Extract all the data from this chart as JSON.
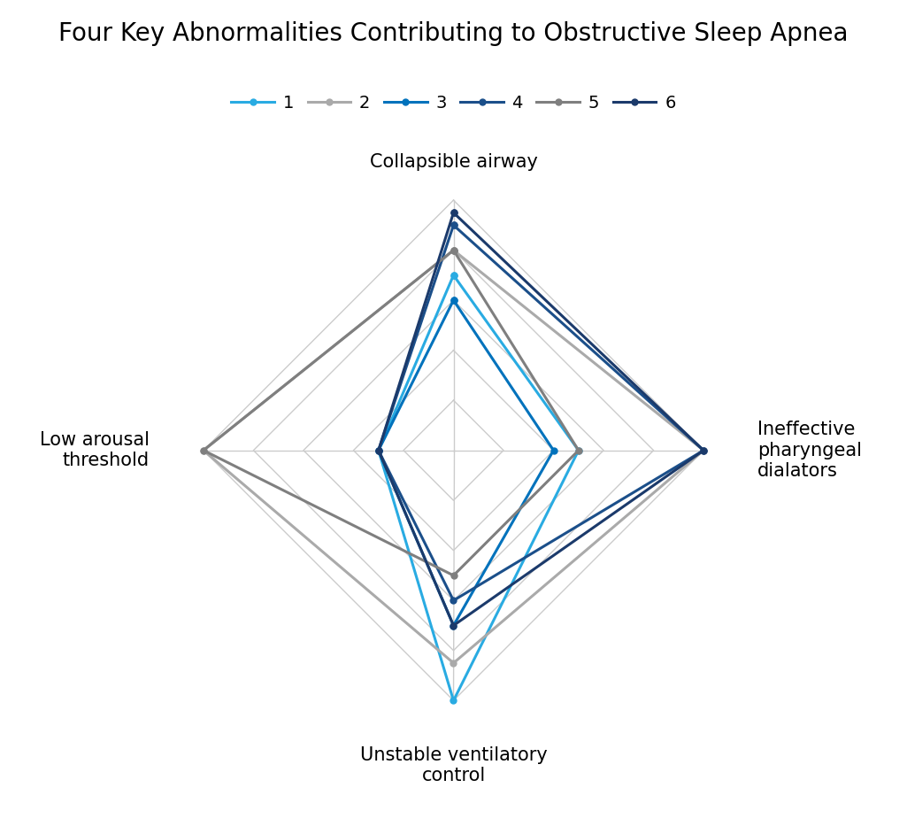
{
  "title": "Four Key Abnormalities Contributing to Obstructive Sleep Apnea",
  "categories": [
    "Collapsible airway",
    "Ineffective\npharyngeal\ndialators",
    "Unstable ventilatory\ncontrol",
    "Low arousal\nthreshold"
  ],
  "series": [
    {
      "label": "1",
      "color": "#29ABE2",
      "values": [
        7.0,
        5.0,
        10.0,
        3.0
      ]
    },
    {
      "label": "2",
      "color": "#AAAAAA",
      "values": [
        8.0,
        10.0,
        8.5,
        10.0
      ]
    },
    {
      "label": "3",
      "color": "#0072BC",
      "values": [
        6.0,
        4.0,
        7.0,
        3.0
      ]
    },
    {
      "label": "4",
      "color": "#1B4F8A",
      "values": [
        9.0,
        10.0,
        6.0,
        3.0
      ]
    },
    {
      "label": "5",
      "color": "#7F7F7F",
      "values": [
        8.0,
        5.0,
        5.0,
        10.0
      ]
    },
    {
      "label": "6",
      "color": "#1B3A6B",
      "values": [
        9.5,
        10.0,
        7.0,
        3.0
      ]
    }
  ],
  "max_value": 10,
  "grid_levels": [
    2,
    4,
    6,
    8,
    10
  ],
  "grid_color": "#CCCCCC",
  "background_color": "#FFFFFF",
  "title_fontsize": 20,
  "label_fontsize": 15,
  "legend_fontsize": 14
}
